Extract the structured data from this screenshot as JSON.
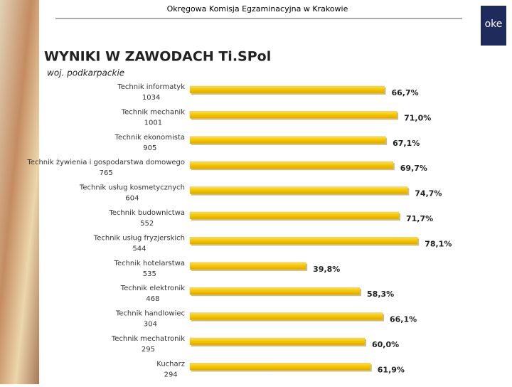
{
  "header": "Okręgowa Komisja Egzaminacyjna w Krakowie",
  "logo": "oke",
  "chart_data": {
    "type": "bar",
    "orientation": "horizontal",
    "title": "WYNIKI W ZAWODACH Ti.SPol",
    "subtitle": "woj. podkarpackie",
    "categories": [
      "Technik informatyk",
      "Technik mechanik",
      "Technik ekonomista",
      "Technik żywienia i gospodarstwa domowego",
      "Technik usług kosmetycznych",
      "Technik budownictwa",
      "Technik usług fryzjerskich",
      "Technik hotelarstwa",
      "Technik elektronik",
      "Technik handlowiec",
      "Technik mechatronik",
      "Kucharz"
    ],
    "counts": [
      1034,
      1001,
      905,
      765,
      604,
      552,
      544,
      535,
      468,
      304,
      295,
      294
    ],
    "values": [
      66.7,
      71.0,
      67.1,
      69.7,
      74.7,
      71.7,
      78.1,
      39.8,
      58.3,
      66.1,
      60.0,
      61.9
    ],
    "value_labels": [
      "66,7%",
      "71,0%",
      "67,1%",
      "69,7%",
      "74,7%",
      "71,7%",
      "78,1%",
      "39,8%",
      "58,3%",
      "66,1%",
      "60,0%",
      "61,9%"
    ],
    "xlim": [
      0,
      100
    ],
    "color": "#f5c400"
  }
}
